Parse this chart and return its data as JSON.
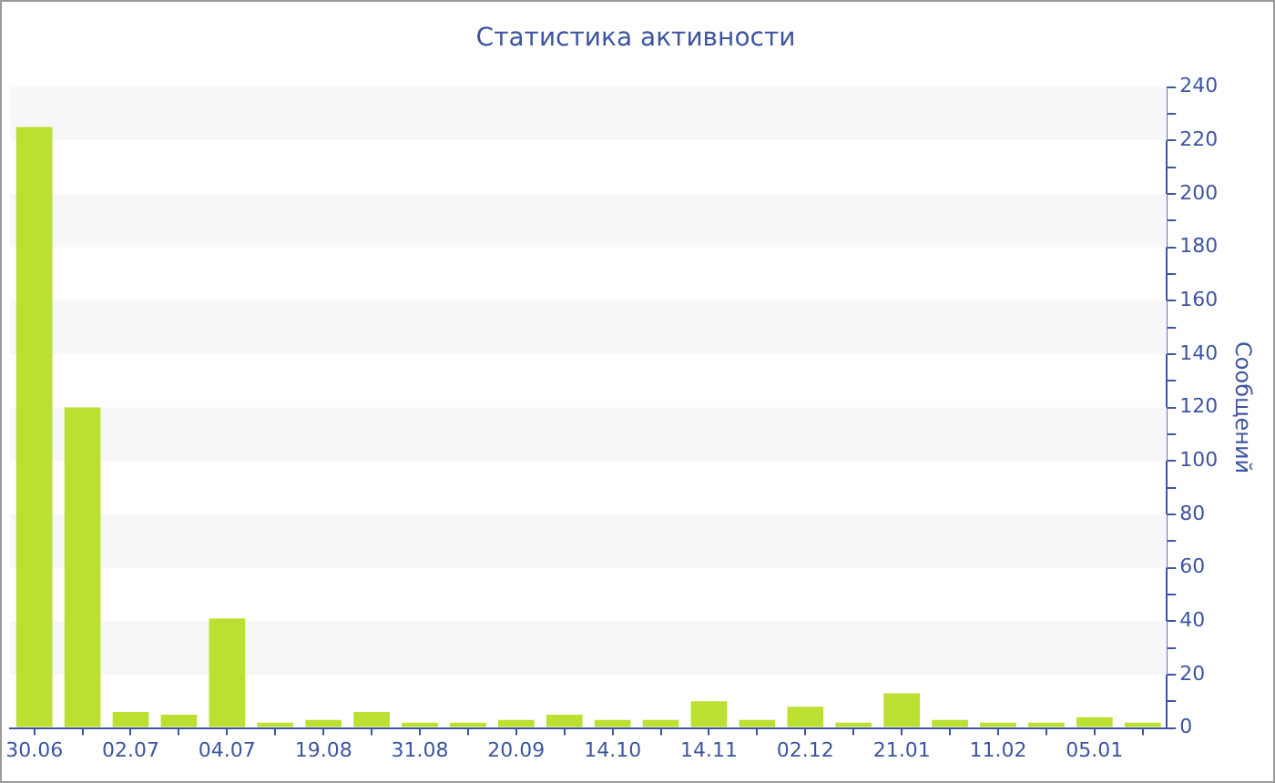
{
  "chart_data": {
    "type": "bar",
    "title": "Статистика активности",
    "ylabel": "Сообщений",
    "categories": [
      "30.06",
      null,
      "02.07",
      null,
      "04.07",
      null,
      "19.08",
      null,
      "31.08",
      null,
      "20.09",
      null,
      "14.10",
      null,
      "14.11",
      null,
      "02.12",
      null,
      "21.01",
      null,
      "11.02",
      null,
      "05.01",
      null
    ],
    "values": [
      225,
      120,
      6,
      5,
      41,
      2,
      3,
      6,
      2,
      2,
      3,
      5,
      3,
      3,
      10,
      3,
      8,
      2,
      13,
      3,
      2,
      2,
      4,
      2
    ],
    "color": "#bbe031",
    "ylim": [
      0,
      240
    ],
    "yticks": [
      0,
      {
        "value": 10,
        "label": null
      },
      20,
      {
        "value": 30,
        "label": null
      },
      40,
      {
        "value": 50,
        "label": null
      },
      60,
      {
        "value": 70,
        "label": null
      },
      80,
      {
        "value": 90,
        "label": null
      },
      100,
      {
        "value": 110,
        "label": null
      },
      120,
      {
        "value": 130,
        "label": null
      },
      140,
      {
        "value": 150,
        "label": null
      },
      160,
      {
        "value": 170,
        "label": null
      },
      180,
      {
        "value": 190,
        "label": null
      },
      200,
      {
        "value": 210,
        "label": null
      },
      220,
      {
        "value": 230,
        "label": null
      },
      240
    ],
    "bands": [
      {
        "axis": "y",
        "from": 20,
        "to": 40,
        "color": "#f7f7f7"
      },
      {
        "axis": "y",
        "from": 60,
        "to": 80,
        "color": "#f7f7f7"
      },
      {
        "axis": "y",
        "from": 100,
        "to": 120,
        "color": "#f7f7f7"
      },
      {
        "axis": "y",
        "from": 140,
        "to": 160,
        "color": "#f7f7f7"
      },
      {
        "axis": "y",
        "from": 180,
        "to": 200,
        "color": "#f7f7f7"
      },
      {
        "axis": "y",
        "from": 220,
        "to": 240,
        "color": "#f7f7f7"
      }
    ],
    "grid": false,
    "legend": false
  }
}
